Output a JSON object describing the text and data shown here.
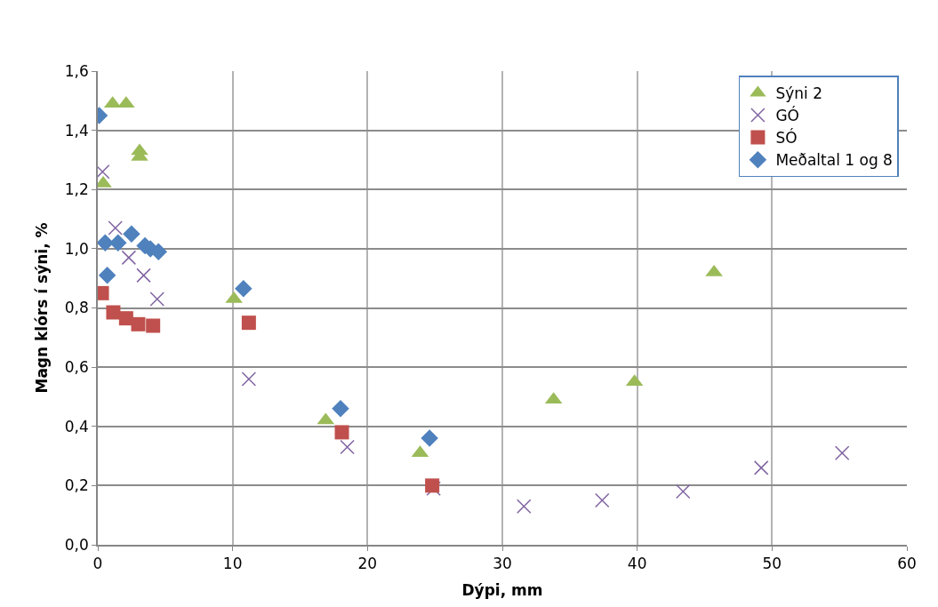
{
  "chart_data": {
    "type": "scatter",
    "xlabel": "Dýpi, mm",
    "ylabel": "Magn klórs í sýni, %",
    "xlim": [
      0,
      60
    ],
    "xticks": [
      0,
      10,
      20,
      30,
      40,
      50,
      60
    ],
    "ylim": [
      0,
      1.6
    ],
    "yticks": [
      {
        "value": 0,
        "label": "0,0"
      },
      {
        "value": 0.2,
        "label": "0,2"
      },
      {
        "value": 0.4,
        "label": "0,4"
      },
      {
        "value": 0.6,
        "label": "0,6"
      },
      {
        "value": 0.8,
        "label": "0,8"
      },
      {
        "value": 1.0,
        "label": "1,0"
      },
      {
        "value": 1.2,
        "label": "1,2"
      },
      {
        "value": 1.4,
        "label": "1,4"
      },
      {
        "value": 1.6,
        "label": "1,6"
      }
    ],
    "grid": true,
    "legend": "top right",
    "series": [
      {
        "name": "Sýni 2",
        "color": "#9bbb59",
        "marker": "triangle",
        "x": [
          0.4,
          1.1,
          2.1,
          3.1,
          3.1,
          10.1,
          16.9,
          23.9,
          33.8,
          39.8,
          45.7
        ],
        "values": [
          1.22,
          1.49,
          1.49,
          1.33,
          1.31,
          0.83,
          0.42,
          0.31,
          0.49,
          0.55,
          0.92
        ]
      },
      {
        "name": "GÓ",
        "color": "#8064a2",
        "marker": "cross",
        "x": [
          0.35,
          1.3,
          2.3,
          3.4,
          4.4,
          11.2,
          18.5,
          24.9,
          31.6,
          37.4,
          43.4,
          49.2,
          55.2
        ],
        "values": [
          1.26,
          1.07,
          0.97,
          0.91,
          0.83,
          0.56,
          0.33,
          0.19,
          0.13,
          0.15,
          0.18,
          0.26,
          0.31
        ]
      },
      {
        "name": "SÓ",
        "color": "#c0504d",
        "marker": "square",
        "x": [
          0.3,
          1.15,
          2.1,
          3.0,
          4.1,
          11.2,
          18.1,
          24.8
        ],
        "values": [
          0.85,
          0.785,
          0.765,
          0.745,
          0.74,
          0.75,
          0.38,
          0.2
        ]
      },
      {
        "name": "Meðaltal 1 og 8",
        "color": "#4f81bd",
        "marker": "diamond",
        "x": [
          0.1,
          0.55,
          0.7,
          1.5,
          2.5,
          3.5,
          3.9,
          4.5,
          10.8,
          18.0,
          24.6
        ],
        "values": [
          1.45,
          1.02,
          0.91,
          1.02,
          1.05,
          1.01,
          1.0,
          0.99,
          0.865,
          0.46,
          0.36
        ]
      }
    ]
  }
}
